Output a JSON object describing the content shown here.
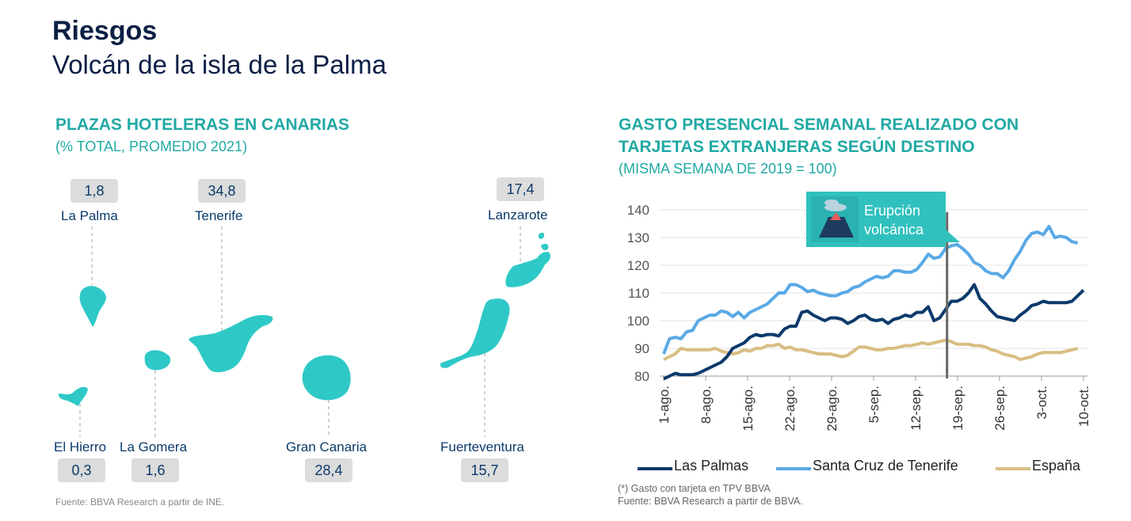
{
  "header": {
    "title": "Riesgos",
    "subtitle": "Volcán de la isla de la Palma"
  },
  "left_panel": {
    "title": "PLAZAS HOTELERAS EN CANARIAS",
    "subtitle": "(% TOTAL, PROMEDIO 2021)",
    "islands": [
      {
        "name": "La Palma",
        "value": "1,8"
      },
      {
        "name": "Tenerife",
        "value": "34,8"
      },
      {
        "name": "Lanzarote",
        "value": "17,4"
      },
      {
        "name": "El Hierro",
        "value": "0,3"
      },
      {
        "name": "La Gomera",
        "value": "1,6"
      },
      {
        "name": "Gran Canaria",
        "value": "28,4"
      },
      {
        "name": "Fuerteventura",
        "value": "15,7"
      }
    ],
    "source": "Fuente: BBVA Research a partir de INE.",
    "island_color": "#2ec9c7"
  },
  "right_panel": {
    "title_line1": "GASTO PRESENCIAL SEMANAL REALIZADO CON",
    "title_line2": "TARJETAS EXTRANJERAS SEGÚN DESTINO",
    "subtitle": "(MISMA SEMANA DE 2019 = 100)",
    "annotation_line1": "Erupción",
    "annotation_line2": "volcánica",
    "note": "(*) Gasto con tarjeta en TPV BBVA",
    "source": "Fuente: BBVA Research a partir de BBVA."
  },
  "chart_data": {
    "type": "line",
    "ylim": [
      80,
      140
    ],
    "yticks": [
      "80",
      "90",
      "100",
      "110",
      "120",
      "130",
      "140"
    ],
    "x_ticks": [
      "1-ago.",
      "8-ago.",
      "15-ago.",
      "22-ago.",
      "29-ago.",
      "5-sep.",
      "12-sep.",
      "19-sep.",
      "26-sep.",
      "3-oct.",
      "10-oct."
    ],
    "event_index": 49,
    "series": [
      {
        "name": "Las Palmas",
        "color": "#0b3a6b",
        "values": [
          79,
          80,
          81,
          80.5,
          80.5,
          80.5,
          81,
          82,
          83,
          84,
          85,
          87,
          90,
          91,
          92,
          94,
          95,
          94.5,
          95,
          95,
          94.5,
          97,
          98,
          98,
          103,
          103.5,
          102,
          101,
          100,
          101,
          101,
          100.5,
          99,
          100,
          101.5,
          102,
          100.5,
          100,
          100.5,
          99,
          100.5,
          101,
          102,
          101.5,
          103,
          103,
          105,
          100,
          101,
          104,
          107,
          107,
          108,
          110,
          113,
          108,
          106,
          103.5,
          101.5,
          101,
          100.5,
          100,
          102,
          103.5,
          105.5,
          106,
          107,
          106.5,
          106.5,
          106.5,
          106.5,
          107,
          109,
          111
        ]
      },
      {
        "name": "Santa Cruz de Tenerife",
        "color": "#5aa9e6",
        "values": [
          88,
          93.5,
          94,
          93.5,
          96,
          96.5,
          100,
          101,
          102,
          102,
          103.5,
          103,
          101.5,
          103,
          101,
          103,
          104,
          105,
          106,
          108,
          110,
          110,
          113,
          113,
          112,
          110.5,
          111,
          110,
          109.5,
          109,
          109,
          110,
          110.5,
          112,
          112.5,
          114,
          115,
          116,
          115.5,
          116,
          118,
          118,
          117.5,
          117.5,
          118.5,
          121,
          124,
          122.5,
          123,
          126,
          127,
          127.5,
          126,
          124,
          121,
          120,
          118,
          117,
          117,
          115.5,
          118,
          122,
          125,
          129,
          131.5,
          132,
          131,
          134,
          130,
          130.5,
          130,
          128.5,
          128
        ]
      },
      {
        "name": "España",
        "color": "#d8be83",
        "values": [
          86,
          87,
          88,
          90,
          89.5,
          89.5,
          89.5,
          89.5,
          89.5,
          90,
          89,
          88.5,
          88,
          88.5,
          89.5,
          89,
          90,
          90,
          91,
          91,
          91.5,
          90,
          90.5,
          89.5,
          89.5,
          89,
          88.5,
          88,
          88,
          88,
          87.5,
          87,
          87.5,
          89,
          90.5,
          90.5,
          90,
          89.5,
          89.5,
          90,
          90,
          90.5,
          91,
          91,
          91.5,
          92,
          91.5,
          92,
          92.5,
          93,
          92.5,
          91.5,
          91.5,
          91.5,
          91,
          91,
          90.5,
          89.5,
          89,
          88,
          87.5,
          87,
          86,
          86.5,
          87,
          88,
          88.5,
          88.5,
          88.5,
          88.5,
          89,
          89.5,
          90
        ]
      }
    ]
  }
}
